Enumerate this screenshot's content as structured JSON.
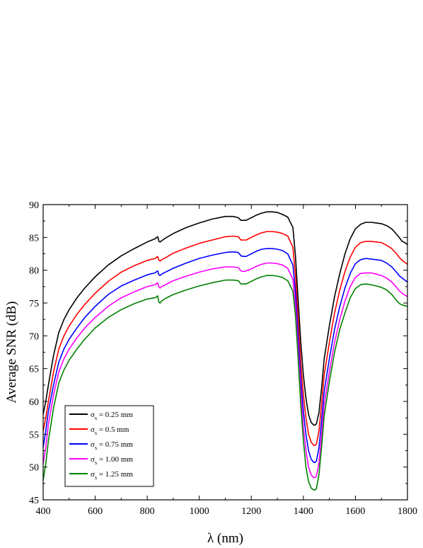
{
  "chart_data": {
    "type": "line",
    "title": "",
    "xlabel": "λ (nm)",
    "ylabel": "Average SNR (dB)",
    "xlim": [
      400,
      1800
    ],
    "ylim": [
      45,
      90
    ],
    "xticks": [
      400,
      600,
      800,
      1000,
      1200,
      1400,
      1600,
      1800
    ],
    "yticks": [
      45,
      50,
      55,
      60,
      65,
      70,
      75,
      80,
      85,
      90
    ],
    "grid": false,
    "legend_placement": "bottom-left",
    "x": [
      400,
      410,
      420,
      440,
      460,
      480,
      500,
      530,
      560,
      600,
      650,
      700,
      750,
      800,
      830,
      840,
      845,
      850,
      855,
      870,
      900,
      950,
      1000,
      1050,
      1100,
      1130,
      1150,
      1160,
      1170,
      1180,
      1200,
      1220,
      1240,
      1260,
      1280,
      1300,
      1320,
      1340,
      1360,
      1370,
      1380,
      1390,
      1400,
      1410,
      1420,
      1430,
      1440,
      1445,
      1450,
      1460,
      1470,
      1480,
      1500,
      1520,
      1540,
      1560,
      1580,
      1600,
      1620,
      1640,
      1660,
      1680,
      1700,
      1720,
      1740,
      1760,
      1770,
      1780,
      1790,
      1800
    ],
    "series": [
      {
        "name": "σs = 0.25 mm",
        "color": "#000000",
        "values": [
          58.0,
          60.0,
          62.5,
          67.0,
          70.5,
          72.5,
          74.0,
          75.8,
          77.3,
          79.0,
          80.8,
          82.2,
          83.3,
          84.3,
          84.8,
          85.1,
          84.4,
          84.3,
          84.5,
          84.9,
          85.6,
          86.5,
          87.2,
          87.8,
          88.2,
          88.2,
          88.0,
          87.6,
          87.6,
          87.6,
          88.0,
          88.4,
          88.7,
          88.9,
          88.9,
          88.8,
          88.5,
          88.1,
          86.5,
          82.0,
          75.5,
          69.0,
          64.0,
          60.5,
          58.0,
          56.8,
          56.4,
          56.4,
          56.6,
          58.3,
          62.0,
          66.5,
          71.5,
          76.0,
          79.5,
          82.5,
          84.8,
          86.3,
          87.0,
          87.3,
          87.3,
          87.2,
          87.1,
          86.8,
          86.3,
          85.4,
          84.9,
          84.4,
          84.2,
          83.9
        ]
      },
      {
        "name": "σs = 0.5 mm",
        "color": "#ff0000",
        "values": [
          55.5,
          57.5,
          60.0,
          64.5,
          68.0,
          70.0,
          71.5,
          73.3,
          74.8,
          76.5,
          78.3,
          79.7,
          80.7,
          81.5,
          81.8,
          82.1,
          81.5,
          81.4,
          81.6,
          81.9,
          82.6,
          83.4,
          84.1,
          84.6,
          85.1,
          85.2,
          85.1,
          84.6,
          84.6,
          84.6,
          85.0,
          85.4,
          85.7,
          85.9,
          85.9,
          85.8,
          85.6,
          85.2,
          83.5,
          79.0,
          72.5,
          66.0,
          61.0,
          57.5,
          55.0,
          53.8,
          53.3,
          53.3,
          53.5,
          55.5,
          59.5,
          64.0,
          69.0,
          73.5,
          77.0,
          79.8,
          82.0,
          83.5,
          84.2,
          84.4,
          84.4,
          84.3,
          84.2,
          83.8,
          83.3,
          82.4,
          81.9,
          81.5,
          81.2,
          80.9
        ]
      },
      {
        "name": "σs = 0.75 mm",
        "color": "#0000ff",
        "values": [
          53.0,
          55.5,
          58.5,
          62.5,
          66.0,
          68.0,
          69.5,
          71.2,
          72.8,
          74.5,
          76.3,
          77.6,
          78.5,
          79.3,
          79.6,
          79.9,
          79.3,
          79.2,
          79.4,
          79.7,
          80.3,
          81.1,
          81.8,
          82.3,
          82.7,
          82.8,
          82.7,
          82.2,
          82.1,
          82.1,
          82.5,
          82.9,
          83.2,
          83.3,
          83.3,
          83.2,
          83.0,
          82.5,
          80.8,
          76.5,
          70.0,
          63.5,
          58.5,
          55.0,
          52.5,
          51.2,
          50.7,
          50.7,
          50.9,
          52.9,
          57.0,
          61.5,
          66.5,
          71.0,
          74.5,
          77.3,
          79.5,
          81.0,
          81.6,
          81.8,
          81.7,
          81.6,
          81.5,
          81.1,
          80.5,
          79.6,
          79.1,
          78.8,
          78.5,
          78.2
        ]
      },
      {
        "name": "σs = 1.00 mm",
        "color": "#ff00ff",
        "values": [
          50.5,
          53.0,
          56.5,
          61.0,
          64.5,
          66.5,
          68.0,
          69.7,
          71.2,
          72.8,
          74.5,
          75.8,
          76.7,
          77.5,
          77.8,
          78.1,
          77.4,
          77.3,
          77.5,
          77.8,
          78.4,
          79.1,
          79.7,
          80.2,
          80.5,
          80.5,
          80.4,
          79.9,
          79.8,
          79.9,
          80.2,
          80.6,
          80.9,
          81.1,
          81.1,
          81.0,
          80.8,
          80.3,
          78.6,
          74.5,
          68.0,
          61.5,
          56.0,
          52.5,
          50.0,
          48.8,
          48.4,
          48.4,
          48.6,
          50.6,
          54.8,
          59.5,
          64.5,
          69.0,
          72.5,
          75.3,
          77.5,
          78.9,
          79.5,
          79.6,
          79.6,
          79.4,
          79.2,
          78.8,
          78.2,
          77.3,
          76.8,
          76.5,
          76.2,
          76.0
        ]
      },
      {
        "name": "σs = 1.25 mm",
        "color": "#008000",
        "values": [
          48.0,
          50.5,
          54.0,
          59.0,
          62.8,
          64.8,
          66.3,
          68.0,
          69.5,
          71.2,
          72.8,
          74.0,
          74.9,
          75.6,
          75.8,
          76.1,
          75.1,
          75.0,
          75.3,
          75.7,
          76.3,
          77.0,
          77.6,
          78.1,
          78.5,
          78.5,
          78.4,
          77.9,
          77.9,
          77.9,
          78.3,
          78.7,
          79.0,
          79.2,
          79.2,
          79.1,
          78.9,
          78.4,
          76.8,
          73.0,
          66.5,
          59.5,
          54.0,
          50.0,
          47.8,
          46.8,
          46.5,
          46.5,
          46.7,
          48.8,
          53.0,
          57.8,
          63.0,
          67.5,
          71.0,
          73.5,
          75.8,
          77.2,
          77.8,
          77.9,
          77.8,
          77.6,
          77.4,
          77.0,
          76.3,
          75.3,
          74.9,
          74.7,
          74.6,
          74.5
        ]
      }
    ],
    "legend": [
      {
        "sym": "σ",
        "sub": "s",
        "text": " = 0.25 mm"
      },
      {
        "sym": "σ",
        "sub": "s",
        "text": " = 0.5 mm"
      },
      {
        "sym": "σ",
        "sub": "s",
        "text": " = 0.75 mm"
      },
      {
        "sym": "σ",
        "sub": "s",
        "text": " = 1.00 mm"
      },
      {
        "sym": "σ",
        "sub": "s",
        "text": " = 1.25 mm"
      }
    ]
  }
}
